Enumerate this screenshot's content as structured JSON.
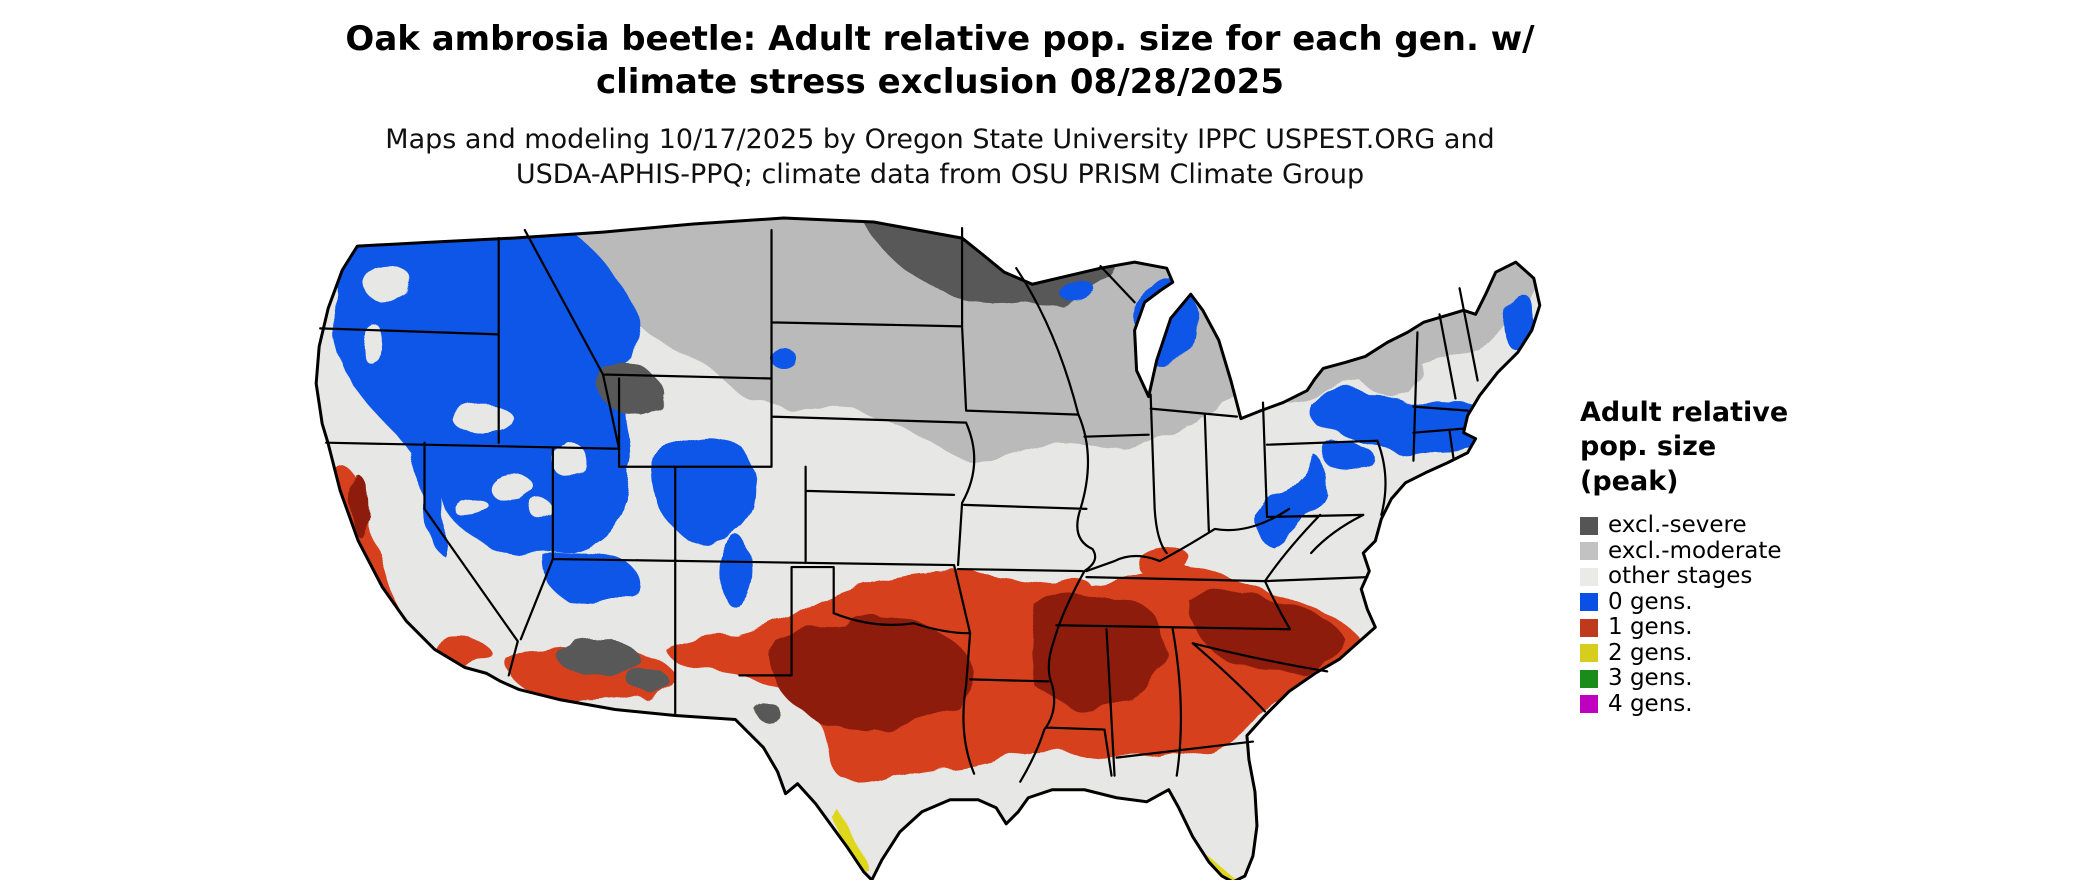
{
  "header": {
    "title_line1": "Oak ambrosia beetle: Adult relative pop. size for each gen. w/",
    "title_line2": "climate stress exclusion 08/28/2025",
    "subtitle_line1": "Maps and modeling 10/17/2025 by Oregon State University IPPC USPEST.ORG and",
    "subtitle_line2": "USDA-APHIS-PPQ; climate data from OSU PRISM Climate Group"
  },
  "legend": {
    "title_lines": [
      "Adult relative",
      "pop. size",
      "(peak)"
    ],
    "items": [
      {
        "label": "excl.-severe",
        "color": "#555555"
      },
      {
        "label": "excl.-moderate",
        "color": "#c2c2c2"
      },
      {
        "label": "other stages",
        "color": "#eaeae8"
      },
      {
        "label": "0 gens.",
        "color": "#0a50e6"
      },
      {
        "label": "1 gens.",
        "color": "#bf3a1c"
      },
      {
        "label": "2 gens.",
        "color": "#d6cd1d"
      },
      {
        "label": "3 gens.",
        "color": "#1a8c1a"
      },
      {
        "label": "4 gens.",
        "color": "#c000c0"
      }
    ]
  },
  "map": {
    "description": "Contiguous United States map of oak ambrosia beetle adult relative population size per generation with climate stress exclusion; dark gray severe-exclusion band across the northern plains, moderate-exclusion gray across the northern tier and New England, blue (0 generations) over the mountain West, Great Lakes and Northeast, red (1 generation) across the South from Texas to the Carolinas and in California, yellow (2 generations) slivers in far south Texas and south Florida",
    "colors": {
      "excl_severe": "#585858",
      "excl_moderate": "#bababa",
      "other_stages": "#e7e7e5",
      "gen0": "#0b57e8",
      "gen1": "#d6401e",
      "gen1_dark": "#8e1c0c",
      "gen2": "#ded71e",
      "border": "#000000"
    }
  }
}
